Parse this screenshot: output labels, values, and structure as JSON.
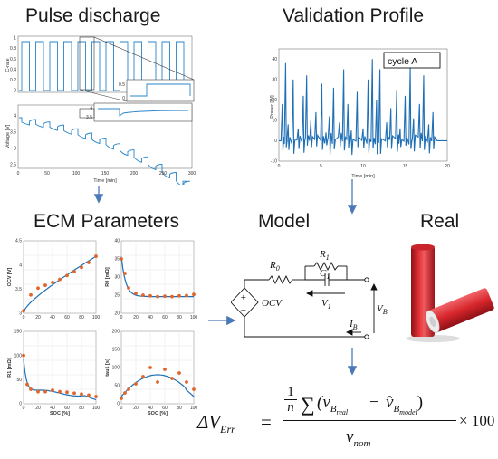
{
  "titles": {
    "pulse": "Pulse discharge",
    "validation": "Validation Profile",
    "ecm": "ECM Parameters",
    "model": "Model",
    "real": "Real"
  },
  "pulse_chart": {
    "top_ylabel": "C-rate",
    "top_yticks": [
      "1",
      "0.8",
      "0.6",
      "0.4",
      "0.2",
      "0"
    ],
    "inset_top_ticks": [
      "0.5",
      "0"
    ],
    "bottom_ylabel": "Voltage [V]",
    "bottom_yticks": [
      "4",
      "3.5",
      "3",
      "2.5"
    ],
    "inset_bottom_ticks": [
      "4",
      "3.5"
    ],
    "xticks": [
      "0",
      "50",
      "100",
      "150",
      "200",
      "250",
      "300"
    ],
    "xlabel": "Time [min]"
  },
  "validation_chart": {
    "ylabel": "Power [W]",
    "yticks": [
      "40",
      "30",
      "20",
      "10",
      "0",
      "-10"
    ],
    "xticks": [
      "0",
      "5",
      "10",
      "15",
      "20"
    ],
    "xlabel": "Time [min]",
    "legend": "cycle A"
  },
  "ecm_charts": {
    "xlabel": "SOC [%]",
    "xticks": [
      "0",
      "20",
      "40",
      "60",
      "80",
      "100"
    ],
    "ocv": {
      "ylabel": "OCV [V]",
      "yticks": [
        "4.5",
        "4",
        "3.5",
        "3"
      ]
    },
    "r0": {
      "ylabel": "R0 [mΩ]",
      "yticks": [
        "40",
        "35",
        "30",
        "25",
        "20"
      ]
    },
    "r1": {
      "ylabel": "R1 [mΩ]",
      "yticks": [
        "150",
        "100",
        "50",
        "0"
      ]
    },
    "tau": {
      "ylabel": "tau1 [s]",
      "yticks": [
        "200",
        "150",
        "100",
        "50",
        "0"
      ]
    }
  },
  "circuit": {
    "r0": "R",
    "r0_sub": "0",
    "r1": "R",
    "r1_sub": "1",
    "c1": "C",
    "c1_sub": "1",
    "v1": "V",
    "v1_sub": "1",
    "ocv": "OCV",
    "vb": "V",
    "vb_sub": "B",
    "ib": "I",
    "ib_sub": "B",
    "plus": "+",
    "minus": "−"
  },
  "equation": {
    "lhs": "ΔV",
    "lhs_sub": "Err",
    "equals": "=",
    "frac_num": "1",
    "frac_den": "n",
    "sum": "∑",
    "open": "(v",
    "sub_real_b": "B",
    "sub_real": "real",
    "minus": "−",
    "vhat": "v̂",
    "sub_model_b": "B",
    "sub_model": "model",
    "close": ")",
    "den": "v",
    "den_sub": "nom",
    "times": "× 100"
  },
  "colors": {
    "line": "#1f6fb5",
    "dots": "#e0652a",
    "battery": "#d7262c",
    "arrow": "#4a78b8"
  }
}
